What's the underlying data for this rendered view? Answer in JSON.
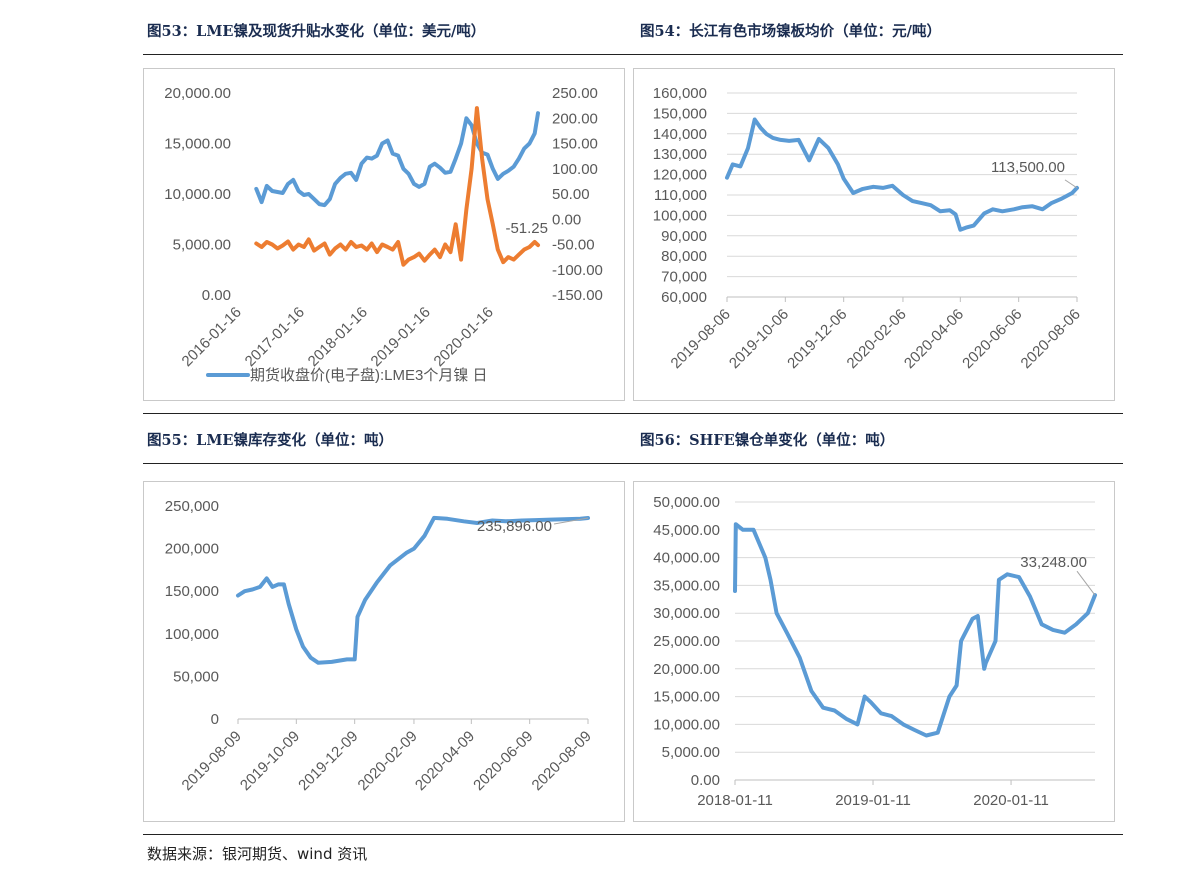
{
  "source_text": "数据来源：银河期货、wind 资讯",
  "chart_data": [
    {
      "type": "line",
      "figure_title": "图53：LME镍及现货升贴水变化（单位：美元/吨）",
      "y_ticks": [
        "20,000.00",
        "15,000.00",
        "10,000.00",
        "5,000.00",
        "0.00"
      ],
      "y2_ticks": [
        "250.00",
        "200.00",
        "150.00",
        "100.00",
        "50.00",
        "0.00",
        "-50.00",
        "-100.00",
        "-150.00"
      ],
      "ylim": [
        0,
        20000
      ],
      "y2lim": [
        -150,
        250
      ],
      "x_labels": [
        "2016-01-16",
        "2017-01-16",
        "2018-01-16",
        "2019-01-16",
        "2020-01-16"
      ],
      "x_range": [
        "2016-01-16",
        "2020-10-20"
      ],
      "annotation": "-51.25",
      "legend_text": "期货收盘价(电子盘):LME3个月镍 日",
      "legend_position": "bottom",
      "grid": false,
      "series": [
        {
          "name": "期货收盘价(电子盘):LME3个月镍 日",
          "axis": "left",
          "color": "#5b9bd5",
          "x": [
            "2016-05-01",
            "2016-06-01",
            "2016-07-01",
            "2016-08-01",
            "2016-09-01",
            "2016-10-01",
            "2016-11-01",
            "2016-12-01",
            "2017-01-01",
            "2017-02-01",
            "2017-03-01",
            "2017-04-01",
            "2017-05-01",
            "2017-06-01",
            "2017-07-01",
            "2017-08-01",
            "2017-09-01",
            "2017-10-01",
            "2017-11-01",
            "2017-12-01",
            "2018-01-01",
            "2018-02-01",
            "2018-03-01",
            "2018-04-01",
            "2018-05-01",
            "2018-06-01",
            "2018-07-01",
            "2018-08-01",
            "2018-09-01",
            "2018-10-01",
            "2018-11-01",
            "2018-12-01",
            "2019-01-01",
            "2019-02-01",
            "2019-03-01",
            "2019-04-01",
            "2019-05-01",
            "2019-06-01",
            "2019-07-01",
            "2019-08-01",
            "2019-09-01",
            "2019-10-01",
            "2019-11-01",
            "2019-12-01",
            "2020-01-01",
            "2020-02-01",
            "2020-03-01",
            "2020-04-01",
            "2020-05-01",
            "2020-06-01",
            "2020-07-01",
            "2020-08-01",
            "2020-09-01",
            "2020-10-01",
            "2020-10-20"
          ],
          "values": [
            10500,
            9200,
            10800,
            10300,
            10200,
            10100,
            11000,
            11400,
            10300,
            9900,
            10000,
            9500,
            9000,
            8900,
            9500,
            11000,
            11600,
            12000,
            12100,
            11400,
            13000,
            13600,
            13500,
            13800,
            15000,
            15300,
            14000,
            13800,
            12500,
            12000,
            11000,
            10700,
            11000,
            12700,
            13000,
            12600,
            12100,
            12200,
            13500,
            15000,
            17500,
            16800,
            15000,
            14100,
            13900,
            12500,
            11500,
            12000,
            12300,
            12700,
            13500,
            14500,
            15000,
            16000,
            18000
          ]
        },
        {
          "axis": "right",
          "color": "#ed7d31",
          "x": [
            "2016-05-01",
            "2016-06-01",
            "2016-07-01",
            "2016-08-01",
            "2016-09-01",
            "2016-10-01",
            "2016-11-01",
            "2016-12-01",
            "2017-01-01",
            "2017-02-01",
            "2017-03-01",
            "2017-04-01",
            "2017-05-01",
            "2017-06-01",
            "2017-07-01",
            "2017-08-01",
            "2017-09-01",
            "2017-10-01",
            "2017-11-01",
            "2017-12-01",
            "2018-01-01",
            "2018-02-01",
            "2018-03-01",
            "2018-04-01",
            "2018-05-01",
            "2018-06-01",
            "2018-07-01",
            "2018-08-01",
            "2018-09-01",
            "2018-10-01",
            "2018-11-01",
            "2018-12-01",
            "2019-01-01",
            "2019-02-01",
            "2019-03-01",
            "2019-04-01",
            "2019-05-01",
            "2019-06-01",
            "2019-07-01",
            "2019-08-01",
            "2019-09-01",
            "2019-10-01",
            "2019-11-01",
            "2019-12-01",
            "2020-01-01",
            "2020-02-01",
            "2020-03-01",
            "2020-04-01",
            "2020-05-01",
            "2020-06-01",
            "2020-07-01",
            "2020-08-01",
            "2020-09-01",
            "2020-10-01",
            "2020-10-20"
          ],
          "values": [
            -48,
            -55,
            -45,
            -50,
            -58,
            -52,
            -44,
            -60,
            -50,
            -55,
            -40,
            -62,
            -55,
            -48,
            -70,
            -58,
            -50,
            -60,
            -45,
            -55,
            -52,
            -60,
            -48,
            -65,
            -50,
            -55,
            -60,
            -45,
            -90,
            -80,
            -75,
            -68,
            -82,
            -70,
            -60,
            -75,
            -50,
            -65,
            -10,
            -80,
            20,
            100,
            220,
            120,
            40,
            -10,
            -60,
            -85,
            -75,
            -80,
            -70,
            -60,
            -55,
            -45,
            -51.25
          ]
        }
      ]
    },
    {
      "type": "line",
      "figure_title": "图54：长江有色市场镍板均价（单位：元/吨）",
      "y_ticks": [
        "160,000",
        "150,000",
        "140,000",
        "130,000",
        "120,000",
        "110,000",
        "100,000",
        "90,000",
        "80,000",
        "70,000",
        "60,000"
      ],
      "ylim": [
        60000,
        160000
      ],
      "x_labels": [
        "2019-08-06",
        "2019-10-06",
        "2019-12-06",
        "2020-02-06",
        "2020-04-06",
        "2020-06-06",
        "2020-08-06"
      ],
      "x_range": [
        "2019-08-06",
        "2020-08-06"
      ],
      "annotation": "113,500.00",
      "grid": true,
      "series": [
        {
          "color": "#5b9bd5",
          "x": [
            "2019-08-06",
            "2019-08-12",
            "2019-08-20",
            "2019-08-28",
            "2019-09-04",
            "2019-09-10",
            "2019-09-16",
            "2019-09-23",
            "2019-10-01",
            "2019-10-10",
            "2019-10-20",
            "2019-10-31",
            "2019-11-10",
            "2019-11-20",
            "2019-11-30",
            "2019-12-06",
            "2019-12-16",
            "2019-12-26",
            "2020-01-06",
            "2020-01-16",
            "2020-01-26",
            "2020-02-06",
            "2020-02-16",
            "2020-02-26",
            "2020-03-06",
            "2020-03-16",
            "2020-03-26",
            "2020-04-01",
            "2020-04-06",
            "2020-04-12",
            "2020-04-20",
            "2020-05-01",
            "2020-05-10",
            "2020-05-20",
            "2020-06-01",
            "2020-06-10",
            "2020-06-20",
            "2020-07-01",
            "2020-07-10",
            "2020-07-20",
            "2020-08-01",
            "2020-08-06"
          ],
          "values": [
            118500,
            125000,
            124000,
            133000,
            147000,
            143000,
            140000,
            138000,
            137000,
            136500,
            137000,
            127000,
            137500,
            133000,
            125000,
            118000,
            111000,
            113000,
            114000,
            113500,
            114500,
            110000,
            107000,
            106000,
            105000,
            102000,
            102500,
            100500,
            93000,
            94000,
            95000,
            101000,
            103000,
            102000,
            103000,
            104000,
            104500,
            103000,
            106000,
            108000,
            111000,
            113500
          ]
        }
      ]
    },
    {
      "type": "line",
      "figure_title": "图55：LME镍库存变化（单位：吨）",
      "y_ticks": [
        "250,000",
        "200,000",
        "150,000",
        "100,000",
        "50,000",
        "0"
      ],
      "ylim": [
        0,
        250000
      ],
      "x_labels": [
        "2019-08-09",
        "2019-10-09",
        "2019-12-09",
        "2020-02-09",
        "2020-04-09",
        "2020-06-09",
        "2020-08-09"
      ],
      "x_range": [
        "2019-08-09",
        "2020-08-09"
      ],
      "annotation": "235,896.00",
      "grid": false,
      "series": [
        {
          "color": "#5b9bd5",
          "x": [
            "2019-08-09",
            "2019-08-16",
            "2019-08-24",
            "2019-09-01",
            "2019-09-08",
            "2019-09-14",
            "2019-09-20",
            "2019-09-26",
            "2019-10-01",
            "2019-10-09",
            "2019-10-16",
            "2019-10-24",
            "2019-11-01",
            "2019-11-15",
            "2019-12-01",
            "2019-12-09",
            "2019-12-12",
            "2019-12-20",
            "2020-01-01",
            "2020-01-15",
            "2020-02-01",
            "2020-02-09",
            "2020-02-20",
            "2020-03-01",
            "2020-03-15",
            "2020-04-01",
            "2020-04-15",
            "2020-05-01",
            "2020-05-15",
            "2020-06-01",
            "2020-06-15",
            "2020-07-01",
            "2020-07-15",
            "2020-08-01",
            "2020-08-09"
          ],
          "values": [
            145000,
            150000,
            152000,
            155000,
            165000,
            155000,
            158000,
            158000,
            135000,
            105000,
            85000,
            72000,
            66000,
            67000,
            70000,
            70000,
            120000,
            140000,
            160000,
            180000,
            195000,
            200000,
            215000,
            236000,
            235000,
            232000,
            230000,
            233000,
            232000,
            233000,
            233500,
            234000,
            234500,
            235000,
            235896
          ]
        }
      ]
    },
    {
      "type": "line",
      "figure_title": "图56：SHFE镍仓单变化（单位：吨）",
      "y_ticks": [
        "50,000.00",
        "45,000.00",
        "40,000.00",
        "35,000.00",
        "30,000.00",
        "25,000.00",
        "20,000.00",
        "15,000.00",
        "10,000.00",
        "5,000.00",
        "0.00"
      ],
      "ylim": [
        0,
        50000
      ],
      "x_labels": [
        "2018-01-11",
        "2019-01-11",
        "2020-01-11"
      ],
      "x_range": [
        "2018-01-11",
        "2020-08-20"
      ],
      "annotation": "33,248.00",
      "grid": true,
      "series": [
        {
          "color": "#5b9bd5",
          "x": [
            "2018-01-11",
            "2018-01-13",
            "2018-02-01",
            "2018-03-01",
            "2018-04-01",
            "2018-04-15",
            "2018-05-01",
            "2018-06-01",
            "2018-07-01",
            "2018-08-01",
            "2018-09-01",
            "2018-10-01",
            "2018-11-01",
            "2018-12-01",
            "2018-12-20",
            "2019-01-05",
            "2019-02-01",
            "2019-03-01",
            "2019-04-01",
            "2019-05-01",
            "2019-06-01",
            "2019-07-01",
            "2019-08-01",
            "2019-08-20",
            "2019-09-01",
            "2019-10-01",
            "2019-10-15",
            "2019-11-01",
            "2019-11-05",
            "2019-12-01",
            "2019-12-10",
            "2020-01-01",
            "2020-02-01",
            "2020-03-01",
            "2020-04-01",
            "2020-05-01",
            "2020-06-01",
            "2020-07-01",
            "2020-08-01",
            "2020-08-20"
          ],
          "values": [
            34000,
            46000,
            45000,
            45000,
            40000,
            36000,
            30000,
            26000,
            22000,
            16000,
            13000,
            12500,
            11000,
            10000,
            15000,
            14000,
            12000,
            11500,
            10000,
            9000,
            8000,
            8500,
            15000,
            17000,
            25000,
            29000,
            29500,
            20000,
            21000,
            25000,
            36000,
            37000,
            36500,
            33000,
            28000,
            27000,
            26500,
            28000,
            30000,
            33248
          ]
        }
      ]
    }
  ]
}
